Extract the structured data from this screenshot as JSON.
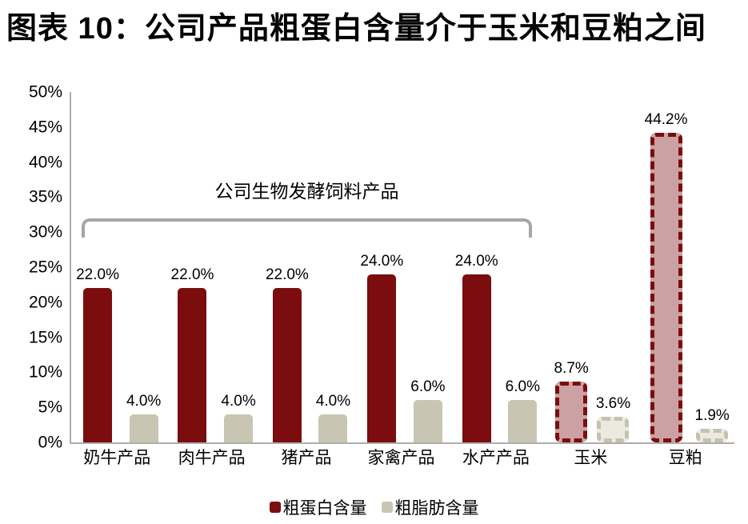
{
  "title": "图表 10：公司产品粗蛋白含量介于玉米和豆粕之间",
  "chart_data": {
    "type": "bar",
    "title": "图表 10：公司产品粗蛋白含量介于玉米和豆粕之间",
    "categories": [
      "奶牛产品",
      "肉牛产品",
      "猪产品",
      "家禽产品",
      "水产产品",
      "玉米",
      "豆粕"
    ],
    "series": [
      {
        "name": "粗蛋白含量",
        "values": [
          22.0,
          22.0,
          22.0,
          24.0,
          24.0,
          8.7,
          44.2
        ],
        "labels": [
          "22.0%",
          "22.0%",
          "22.0%",
          "24.0%",
          "24.0%",
          "8.7%",
          "44.2%"
        ],
        "color": "#7B0D0E",
        "light_fill": "#CBA1A4"
      },
      {
        "name": "粗脂肪含量",
        "values": [
          4.0,
          4.0,
          4.0,
          6.0,
          6.0,
          3.6,
          1.9
        ],
        "labels": [
          "4.0%",
          "4.0%",
          "4.0%",
          "6.0%",
          "6.0%",
          "3.6%",
          "1.9%"
        ],
        "color": "#C8C5B2",
        "light_fill": "#ECEAE0",
        "dash_color": "#C4C1AE"
      }
    ],
    "dashed_from_index": 5,
    "annotation": {
      "text": "公司生物发酵饲料产品",
      "covers_categories": [
        "奶牛产品",
        "肉牛产品",
        "猪产品",
        "家禽产品",
        "水产产品"
      ]
    },
    "y_axis": {
      "min": 0,
      "max": 50,
      "tick_step": 5,
      "tick_labels": [
        "0%",
        "5%",
        "10%",
        "15%",
        "20%",
        "25%",
        "30%",
        "35%",
        "40%",
        "45%",
        "50%"
      ]
    },
    "legend": {
      "position": "bottom",
      "entries": [
        "粗蛋白含量",
        "粗脂肪含量"
      ]
    },
    "grid": false,
    "colors": {
      "axis": "#ADADAD",
      "bracket": "#A6A6A6",
      "text": "#000000",
      "background": "#FFFFFF"
    }
  }
}
